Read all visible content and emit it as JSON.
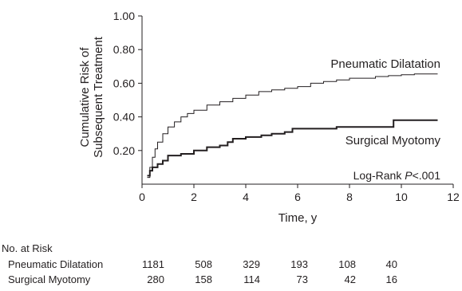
{
  "chart_data": {
    "type": "line",
    "xlabel": "Time, y",
    "ylabel_line1": "Cumulative Risk of",
    "ylabel_line2": "Subsequent Treatment",
    "xlim": [
      0,
      12
    ],
    "ylim": [
      0,
      1.0
    ],
    "x_ticks": [
      0,
      2,
      4,
      6,
      8,
      10,
      12
    ],
    "y_ticks": [
      0.2,
      0.4,
      0.6,
      0.8,
      1.0
    ],
    "y_tick_labels": [
      "0.20",
      "0.40",
      "0.60",
      "0.80",
      "1.00"
    ],
    "grid": false,
    "annotation": {
      "prefix": "Log-Rank ",
      "italic": "P",
      "suffix": "<.001"
    },
    "series": [
      {
        "name": "Pneumatic Dilatation",
        "stroke_width": 1,
        "points": [
          [
            0.2,
            0.04
          ],
          [
            0.3,
            0.1
          ],
          [
            0.4,
            0.16
          ],
          [
            0.5,
            0.21
          ],
          [
            0.6,
            0.25
          ],
          [
            0.8,
            0.3
          ],
          [
            1.0,
            0.34
          ],
          [
            1.25,
            0.37
          ],
          [
            1.5,
            0.4
          ],
          [
            1.75,
            0.42
          ],
          [
            2.0,
            0.44
          ],
          [
            2.5,
            0.47
          ],
          [
            3.0,
            0.49
          ],
          [
            3.5,
            0.51
          ],
          [
            4.0,
            0.53
          ],
          [
            4.5,
            0.55
          ],
          [
            5.0,
            0.56
          ],
          [
            5.5,
            0.57
          ],
          [
            6.0,
            0.58
          ],
          [
            6.5,
            0.6
          ],
          [
            7.0,
            0.61
          ],
          [
            7.5,
            0.62
          ],
          [
            8.0,
            0.63
          ],
          [
            8.5,
            0.63
          ],
          [
            9.0,
            0.64
          ],
          [
            9.5,
            0.645
          ],
          [
            10.0,
            0.65
          ],
          [
            10.5,
            0.655
          ],
          [
            11.4,
            0.655
          ]
        ]
      },
      {
        "name": "Surgical Myotomy",
        "stroke_width": 2,
        "points": [
          [
            0.2,
            0.05
          ],
          [
            0.3,
            0.08
          ],
          [
            0.4,
            0.1
          ],
          [
            0.6,
            0.12
          ],
          [
            0.8,
            0.14
          ],
          [
            1.0,
            0.17
          ],
          [
            1.5,
            0.18
          ],
          [
            2.0,
            0.2
          ],
          [
            2.5,
            0.22
          ],
          [
            3.0,
            0.23
          ],
          [
            3.3,
            0.25
          ],
          [
            3.5,
            0.27
          ],
          [
            4.0,
            0.28
          ],
          [
            4.6,
            0.29
          ],
          [
            5.0,
            0.3
          ],
          [
            5.5,
            0.31
          ],
          [
            5.8,
            0.33
          ],
          [
            6.5,
            0.33
          ],
          [
            7.5,
            0.34
          ],
          [
            9.2,
            0.34
          ],
          [
            9.7,
            0.38
          ],
          [
            11.4,
            0.38
          ]
        ]
      }
    ]
  },
  "risk_table": {
    "title": "No. at Risk",
    "rows": [
      {
        "label": "Pneumatic Dilatation",
        "values": [
          "1181",
          "508",
          "329",
          "193",
          "108",
          "40"
        ]
      },
      {
        "label": "Surgical Myotomy",
        "values": [
          "280",
          "158",
          "114",
          "73",
          "42",
          "16"
        ]
      }
    ]
  }
}
